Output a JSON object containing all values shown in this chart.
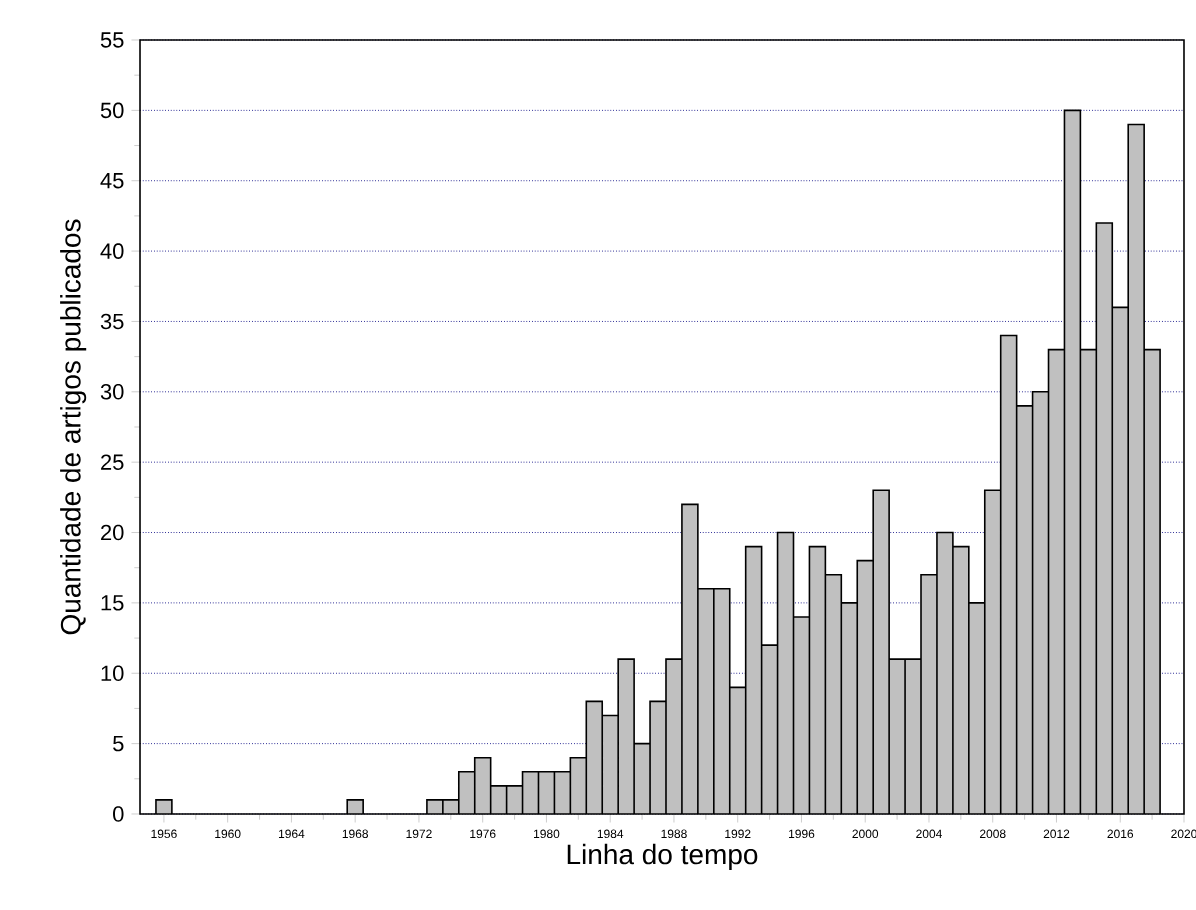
{
  "chart_data": {
    "type": "bar",
    "xlabel": "Linha do tempo",
    "ylabel": "Quantidade de artigos publicados",
    "x": [
      1956,
      1968,
      1973,
      1974,
      1975,
      1976,
      1977,
      1978,
      1979,
      1980,
      1981,
      1982,
      1983,
      1984,
      1985,
      1986,
      1987,
      1988,
      1989,
      1990,
      1991,
      1992,
      1993,
      1994,
      1995,
      1996,
      1997,
      1998,
      1999,
      2000,
      2001,
      2002,
      2003,
      2004,
      2005,
      2006,
      2007,
      2008,
      2009,
      2010,
      2011,
      2012,
      2013,
      2014,
      2015,
      2016,
      2017,
      2018
    ],
    "values": [
      1,
      1,
      1,
      1,
      3,
      4,
      2,
      2,
      3,
      3,
      3,
      4,
      8,
      7,
      11,
      5,
      8,
      11,
      22,
      16,
      16,
      9,
      19,
      12,
      20,
      14,
      19,
      17,
      15,
      18,
      23,
      11,
      11,
      17,
      20,
      19,
      15,
      23,
      34,
      29,
      30,
      33,
      50,
      33,
      42,
      36,
      49,
      33
    ],
    "color": "#c0c0c0",
    "xlim": [
      1954.5,
      2020
    ],
    "xticks": [
      1956,
      1960,
      1964,
      1968,
      1972,
      1976,
      1980,
      1984,
      1988,
      1992,
      1996,
      2000,
      2004,
      2008,
      2012,
      2016,
      2020
    ],
    "ylim": [
      0,
      55
    ],
    "yticks": [
      0,
      5,
      10,
      15,
      20,
      25,
      30,
      35,
      40,
      45,
      50,
      55
    ],
    "grid": "y"
  }
}
